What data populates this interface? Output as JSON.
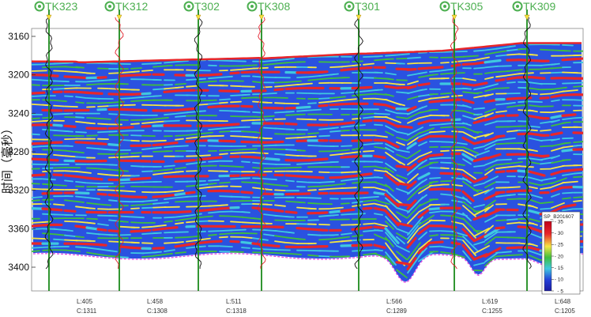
{
  "chart_data": {
    "type": "heatmap",
    "ylabel": "时间（毫秒）",
    "y_ticks": [
      3160,
      3200,
      3240,
      3280,
      3320,
      3360,
      3400
    ],
    "ylim": [
      3400,
      3160
    ],
    "wells": [
      {
        "name": "TK323",
        "line_label": "L:405",
        "cdp_label": "C:1311"
      },
      {
        "name": "TK312",
        "line_label": "L:458",
        "cdp_label": "C:1308"
      },
      {
        "name": "T302",
        "line_label": "L:511",
        "cdp_label": "C:1318"
      },
      {
        "name": "TK308",
        "line_label": "",
        "cdp_label": ""
      },
      {
        "name": "T301",
        "line_label": "L:566",
        "cdp_label": "C:1289"
      },
      {
        "name": "TK305",
        "line_label": "L:619",
        "cdp_label": "C:1255"
      },
      {
        "name": "TK309",
        "line_label": "L:648",
        "cdp_label": "C:1205"
      }
    ],
    "colorbar": {
      "title": "SP_B201607",
      "ticks": [
        35,
        30,
        25,
        20,
        15,
        10,
        5
      ],
      "range": [
        5,
        35
      ]
    },
    "colors": {
      "red": "#e8262a",
      "yellow": "#f5e642",
      "green": "#3fbf3f",
      "cyan": "#3fc8e0",
      "blue": "#2440d8",
      "well_marker": "#4caf50"
    }
  }
}
